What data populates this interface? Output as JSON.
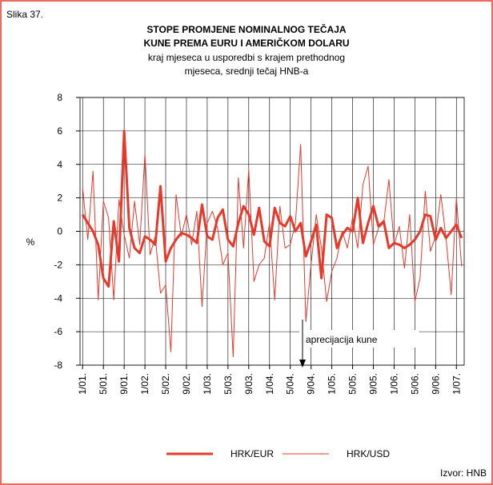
{
  "chart_data": {
    "type": "line",
    "figure_label": "Slika 37.",
    "title": [
      "STOPE PROMJENE NOMINALNOG TEČAJA",
      "KUNE PREMA EURU I AMERIČKOM DOLARU"
    ],
    "subtitle": [
      "kraj mjeseca u usporedbi s krajem prethodnog",
      "mjeseca, srednji tečaj HNB-a"
    ],
    "y_label": "%",
    "annotation": "aprecijacija kune",
    "source": "Izvor: HNB",
    "categories": [
      "1/01.",
      null,
      null,
      null,
      "5/01.",
      null,
      null,
      null,
      "9/01.",
      null,
      null,
      null,
      "1/02.",
      null,
      null,
      null,
      "5/02.",
      null,
      null,
      null,
      "9/02.",
      null,
      null,
      null,
      "1/03.",
      null,
      null,
      null,
      "5/03.",
      null,
      null,
      null,
      "9/03.",
      null,
      null,
      null,
      "1/04.",
      null,
      null,
      null,
      "5/04.",
      null,
      null,
      null,
      "9/04.",
      null,
      null,
      null,
      "1/05.",
      null,
      null,
      null,
      "5/05.",
      null,
      null,
      null,
      "9/05.",
      null,
      null,
      null,
      "1/06.",
      null,
      null,
      null,
      "5/06.",
      null,
      null,
      null,
      "9/06.",
      null,
      null,
      null,
      "1/07.",
      null
    ],
    "series": [
      {
        "name": "HRK/EUR",
        "color": "#e8382a",
        "width": 3,
        "values": [
          1.0,
          0.5,
          0.0,
          -0.8,
          -2.8,
          -3.3,
          0.6,
          -1.8,
          6.0,
          0.2,
          -1.0,
          -1.3,
          -0.3,
          -0.5,
          -0.8,
          2.7,
          -1.8,
          -1.0,
          -0.5,
          -0.1,
          -0.2,
          -0.4,
          -0.7,
          1.6,
          -0.3,
          -0.5,
          0.8,
          1.3,
          -0.5,
          -0.9,
          0.5,
          1.5,
          1.0,
          -0.2,
          1.4,
          -0.6,
          -0.9,
          1.4,
          0.5,
          0.3,
          0.9,
          0.0,
          0.5,
          -1.5,
          -0.6,
          0.4,
          -2.8,
          1.0,
          0.8,
          -1.0,
          -0.2,
          0.2,
          0.0,
          2.0,
          -0.7,
          0.5,
          1.5,
          0.3,
          0.6,
          -1.0,
          -0.7,
          -0.8,
          -1.0,
          -0.8,
          -0.5,
          0.0,
          1.0,
          0.9,
          -0.5,
          0.2,
          -0.4,
          0.0,
          0.4,
          -0.4
        ]
      },
      {
        "name": "HRK/USD",
        "color": "#e8382a",
        "width": 1,
        "values": [
          2.6,
          -0.5,
          3.6,
          -4.1,
          1.8,
          0.8,
          -4.1,
          1.9,
          -0.2,
          -1.6,
          1.8,
          -0.8,
          4.6,
          -1.4,
          -0.3,
          -3.7,
          -3.2,
          -7.2,
          2.2,
          -0.3,
          1.0,
          -0.8,
          1.2,
          -4.5,
          0.5,
          1.2,
          0.2,
          -2.0,
          -1.3,
          -7.5,
          3.2,
          -1.0,
          3.7,
          -3.0,
          -2.0,
          -1.6,
          0.5,
          -4.1,
          1.5,
          -1.0,
          -0.8,
          0.5,
          5.2,
          -5.4,
          -2.0,
          1.0,
          -1.0,
          -4.2,
          -2.4,
          -1.6,
          0.0,
          -1.0,
          0.8,
          -1.0,
          2.8,
          3.9,
          -0.8,
          0.2,
          0.5,
          3.1,
          -0.8,
          0.3,
          -2.2,
          1.0,
          -4.2,
          -2.8,
          2.4,
          -1.2,
          -0.3,
          2.2,
          -0.4,
          -3.8,
          2.0,
          -2.1
        ]
      }
    ],
    "ylim": [
      -8,
      8
    ],
    "yticks": [
      -8,
      -6,
      -4,
      -2,
      0,
      2,
      4,
      6,
      8
    ],
    "grid": true
  }
}
